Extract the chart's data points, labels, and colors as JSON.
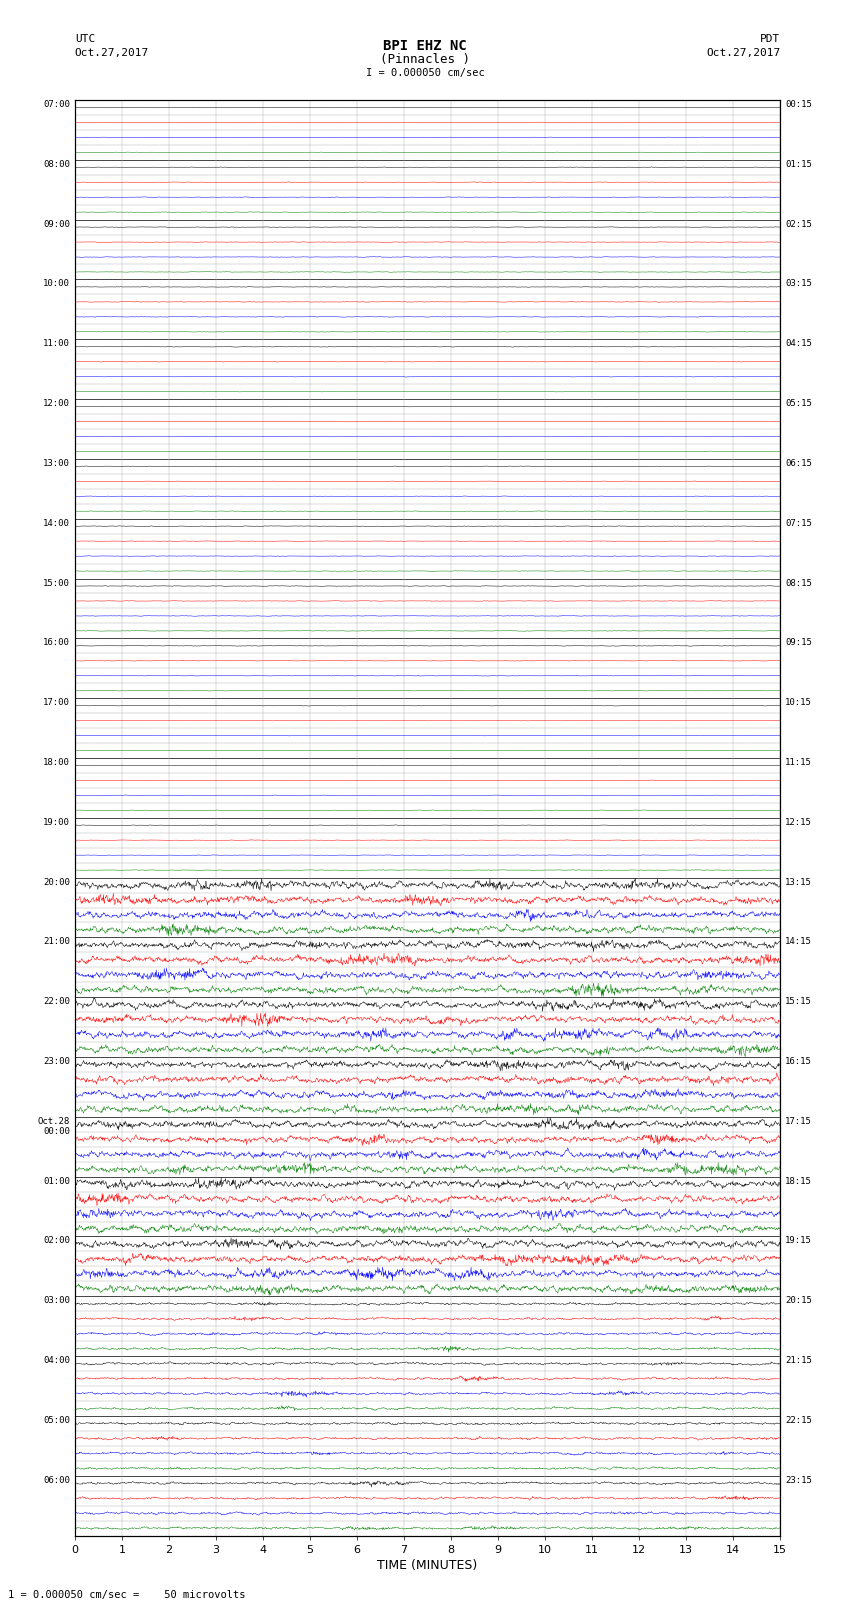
{
  "title_line1": "BPI EHZ NC",
  "title_line2": "(Pinnacles )",
  "title_line3": "I = 0.000050 cm/sec",
  "left_header_line1": "UTC",
  "left_header_line2": "Oct.27,2017",
  "right_header_line1": "PDT",
  "right_header_line2": "Oct.27,2017",
  "xlabel": "TIME (MINUTES)",
  "footer": "1 = 0.000050 cm/sec =    50 microvolts",
  "utc_labels": [
    "07:00",
    "08:00",
    "09:00",
    "10:00",
    "11:00",
    "12:00",
    "13:00",
    "14:00",
    "15:00",
    "16:00",
    "17:00",
    "18:00",
    "19:00",
    "20:00",
    "21:00",
    "22:00",
    "23:00",
    "Oct.28\n00:00",
    "01:00",
    "02:00",
    "03:00",
    "04:00",
    "05:00",
    "06:00"
  ],
  "pdt_labels": [
    "00:15",
    "01:15",
    "02:15",
    "03:15",
    "04:15",
    "05:15",
    "06:15",
    "07:15",
    "08:15",
    "09:15",
    "10:15",
    "11:15",
    "12:15",
    "13:15",
    "14:15",
    "15:15",
    "16:15",
    "17:15",
    "18:15",
    "19:15",
    "20:15",
    "21:15",
    "22:15",
    "23:15"
  ],
  "n_hours": 24,
  "traces_per_hour": 4,
  "n_minutes": 15,
  "background_color": "#ffffff",
  "major_grid_color": "#444444",
  "minor_grid_color": "#aaaaaa",
  "trace_colors_cycle": [
    "black",
    "red",
    "blue",
    "green"
  ],
  "noise_amplitude_quiet": 0.008,
  "noise_amplitude_medium": 0.04,
  "noise_amplitude_active": 0.12,
  "seed": 42,
  "active_hour_groups": [
    13,
    14,
    15,
    16,
    17,
    18,
    19
  ],
  "medium_hour_groups": [
    20,
    21,
    22,
    23
  ]
}
